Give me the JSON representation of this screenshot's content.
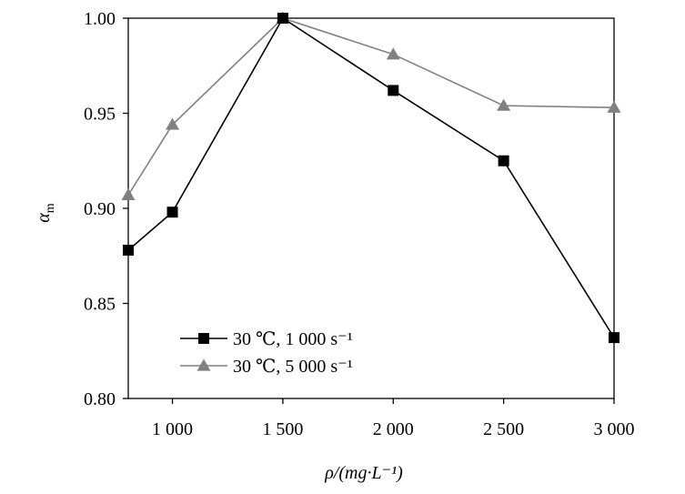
{
  "chart_data": {
    "type": "line",
    "x": [
      800,
      1000,
      1500,
      2000,
      2500,
      3000
    ],
    "xlim": [
      800,
      3000
    ],
    "ylim": [
      0.8,
      1.0
    ],
    "xticks": [
      1000,
      1500,
      2000,
      2500,
      3000
    ],
    "xtick_labels": [
      "1 000",
      "1 500",
      "2 000",
      "2 500",
      "3 000"
    ],
    "yticks": [
      0.8,
      0.85,
      0.9,
      0.95,
      1.0
    ],
    "ytick_labels": [
      "0.80",
      "0.85",
      "0.90",
      "0.95",
      "1.00"
    ],
    "xlabel": "ρ/(mg·L⁻¹)",
    "ylabel_main": "α",
    "ylabel_sub": "m",
    "grid": false,
    "legend_position": "bottom-left",
    "series": [
      {
        "name": "30 ℃, 1 000 s⁻¹",
        "marker": "square",
        "color": "#000000",
        "values": [
          0.878,
          0.898,
          1.0,
          0.962,
          0.925,
          0.832
        ]
      },
      {
        "name": "30 ℃, 5 000 s⁻¹",
        "marker": "triangle",
        "color": "#808080",
        "values": [
          0.907,
          0.944,
          1.0,
          0.981,
          0.954,
          0.953
        ]
      }
    ]
  }
}
